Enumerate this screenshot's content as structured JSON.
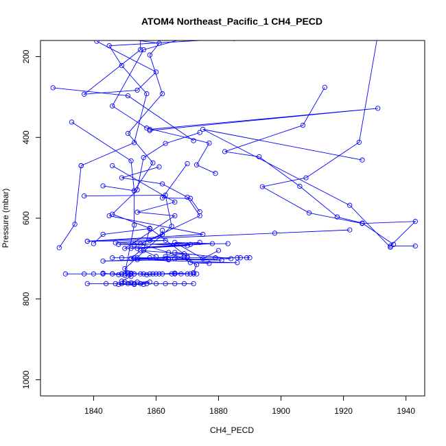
{
  "chart_data": {
    "type": "line",
    "title": "ATOM4 Northeast_Pacific_1 CH4_PECD",
    "xlabel": "CH4_PECD",
    "ylabel": "Pressure (mbar)",
    "xlim": [
      1823,
      1946
    ],
    "ylim": [
      1040,
      160
    ],
    "y_reversed": true,
    "x_ticks": [
      1840,
      1860,
      1880,
      1900,
      1920,
      1940
    ],
    "y_ticks": [
      200,
      400,
      600,
      800,
      1000
    ],
    "grid": false,
    "legend": "none",
    "series_color": "#0000ff",
    "segments": [
      [
        [
          1840,
          145
        ],
        [
          1861,
          167
        ],
        [
          1858,
          196
        ],
        [
          1862,
          292
        ],
        [
          1851,
          390
        ],
        [
          1859,
          463
        ],
        [
          1853,
          532
        ],
        [
          1853,
          617
        ],
        [
          1850,
          738
        ]
      ],
      [
        [
          1869,
          155
        ],
        [
          1856,
          183
        ],
        [
          1846,
          322
        ],
        [
          1857,
          377
        ],
        [
          1877,
          414
        ],
        [
          1873,
          468
        ],
        [
          1879,
          489
        ]
      ],
      [
        [
          1885,
          155
        ],
        [
          1845,
          173
        ],
        [
          1849,
          222
        ],
        [
          1857,
          292
        ],
        [
          1853,
          413
        ],
        [
          1836,
          470
        ]
      ],
      [
        [
          1836,
          470
        ],
        [
          1834,
          615
        ],
        [
          1829,
          673
        ]
      ],
      [
        [
          1855,
          140
        ],
        [
          1855,
          183
        ],
        [
          1837,
          293
        ],
        [
          1854,
          283
        ],
        [
          1860,
          238
        ],
        [
          1841,
          162
        ]
      ],
      [
        [
          1827,
          277
        ],
        [
          1851,
          297
        ],
        [
          1872,
          408
        ]
      ],
      [
        [
          1833,
          362
        ],
        [
          1852,
          458
        ],
        [
          1853,
          532
        ],
        [
          1843,
          520
        ]
      ],
      [
        [
          1874,
          388
        ],
        [
          1863,
          415
        ],
        [
          1856,
          450
        ],
        [
          1854,
          530
        ],
        [
          1846,
          590
        ],
        [
          1858,
          625
        ],
        [
          1870,
          695
        ]
      ],
      [
        [
          1858,
          383
        ],
        [
          1931,
          328
        ],
        [
          1858,
          380
        ]
      ],
      [
        [
          1914,
          276
        ],
        [
          1907,
          370
        ],
        [
          1882,
          435
        ],
        [
          1893,
          448
        ],
        [
          1906,
          521
        ],
        [
          1918,
          597
        ],
        [
          1926,
          612
        ],
        [
          1936,
          665
        ]
      ],
      [
        [
          1888,
          140
        ],
        [
          1932,
          100
        ],
        [
          1925,
          412
        ],
        [
          1908,
          500
        ],
        [
          1894,
          522
        ],
        [
          1909,
          587
        ],
        [
          1926,
          613
        ],
        [
          1943,
          608
        ],
        [
          1935,
          669
        ],
        [
          1943,
          669
        ]
      ],
      [
        [
          1926,
          456
        ],
        [
          1875,
          380
        ],
        [
          1922,
          568
        ],
        [
          1935,
          672
        ]
      ],
      [
        [
          1846,
          470
        ],
        [
          1866,
          560
        ],
        [
          1854,
          585
        ],
        [
          1866,
          594
        ],
        [
          1850,
          675
        ],
        [
          1871,
          665
        ]
      ],
      [
        [
          1861,
          473
        ],
        [
          1849,
          500
        ],
        [
          1862,
          515
        ],
        [
          1870,
          548
        ],
        [
          1874,
          594
        ],
        [
          1855,
          664
        ],
        [
          1864,
          685
        ],
        [
          1873,
          715
        ],
        [
          1872,
          735
        ]
      ],
      [
        [
          1837,
          545
        ],
        [
          1863,
          543
        ],
        [
          1865,
          620
        ],
        [
          1850,
          725
        ],
        [
          1851,
          735
        ]
      ],
      [
        [
          1845,
          594
        ],
        [
          1875,
          640
        ],
        [
          1838,
          657
        ],
        [
          1863,
          655
        ],
        [
          1847,
          661
        ],
        [
          1870,
          668
        ],
        [
          1854,
          675
        ]
      ],
      [
        [
          1840,
          663
        ],
        [
          1843,
          640
        ],
        [
          1858,
          626
        ],
        [
          1856,
          680
        ],
        [
          1860,
          695
        ]
      ],
      [
        [
          1852,
          675
        ],
        [
          1878,
          663
        ],
        [
          1866,
          660
        ],
        [
          1875,
          700
        ],
        [
          1880,
          680
        ]
      ],
      [
        [
          1874,
          660
        ],
        [
          1853,
          666
        ],
        [
          1848,
          665
        ],
        [
          1883,
          663
        ]
      ],
      [
        [
          1869,
          695
        ],
        [
          1852,
          700
        ],
        [
          1864,
          703
        ]
      ],
      [
        [
          1866,
          685
        ],
        [
          1884,
          700
        ],
        [
          1843,
          706
        ],
        [
          1854,
          703
        ],
        [
          1886,
          710
        ],
        [
          1871,
          710
        ],
        [
          1877,
          712
        ]
      ],
      [
        [
          1846,
          698
        ],
        [
          1858,
          698
        ],
        [
          1879,
          698
        ],
        [
          1887,
          698
        ],
        [
          1889,
          698
        ],
        [
          1870,
          698
        ],
        [
          1854,
          698
        ],
        [
          1849,
          698
        ],
        [
          1886,
          698
        ],
        [
          1890,
          698
        ],
        [
          1853,
          698
        ]
      ],
      [
        [
          1863,
          695
        ],
        [
          1869,
          688
        ],
        [
          1855,
          680
        ],
        [
          1852,
          700
        ]
      ],
      [
        [
          1852,
          700
        ],
        [
          1863,
          700
        ],
        [
          1864,
          702
        ],
        [
          1881,
          704
        ],
        [
          1866,
          700
        ]
      ],
      [
        [
          1838,
          657
        ],
        [
          1898,
          637
        ],
        [
          1922,
          629
        ]
      ],
      [
        [
          1831,
          738
        ],
        [
          1837,
          738
        ],
        [
          1840,
          738
        ],
        [
          1843,
          738
        ],
        [
          1846,
          738
        ],
        [
          1849,
          738
        ],
        [
          1851,
          738
        ],
        [
          1852,
          738
        ],
        [
          1853,
          738
        ],
        [
          1855,
          738
        ],
        [
          1858,
          738
        ],
        [
          1859,
          738
        ],
        [
          1861,
          738
        ],
        [
          1865,
          738
        ],
        [
          1868,
          738
        ],
        [
          1871,
          738
        ],
        [
          1873,
          738
        ]
      ],
      [
        [
          1846,
          738
        ],
        [
          1849,
          738
        ],
        [
          1853,
          738
        ],
        [
          1856,
          738
        ],
        [
          1860,
          738
        ],
        [
          1862,
          738
        ],
        [
          1866,
          738
        ],
        [
          1870,
          738
        ]
      ],
      [
        [
          1843,
          736
        ],
        [
          1848,
          740
        ],
        [
          1852,
          736
        ],
        [
          1857,
          740
        ],
        [
          1866,
          736
        ],
        [
          1872,
          738
        ]
      ],
      [
        [
          1850,
          742
        ],
        [
          1852,
          744
        ],
        [
          1849,
          756
        ],
        [
          1852,
          760
        ]
      ],
      [
        [
          1838,
          762
        ],
        [
          1844,
          762
        ],
        [
          1847,
          762
        ],
        [
          1849,
          762
        ],
        [
          1851,
          762
        ],
        [
          1853,
          762
        ],
        [
          1855,
          762
        ],
        [
          1857,
          762
        ],
        [
          1860,
          762
        ],
        [
          1863,
          762
        ],
        [
          1866,
          762
        ],
        [
          1869,
          762
        ],
        [
          1872,
          762
        ]
      ],
      [
        [
          1850,
          758
        ],
        [
          1854,
          758
        ],
        [
          1858,
          758
        ],
        [
          1853,
          764
        ],
        [
          1848,
          764
        ],
        [
          1856,
          764
        ]
      ],
      [
        [
          1870,
          465
        ],
        [
          1862,
          550
        ],
        [
          1871,
          551
        ],
        [
          1874,
          584
        ]
      ],
      [
        [
          1862,
          630
        ],
        [
          1862,
          640
        ],
        [
          1858,
          655
        ]
      ]
    ]
  }
}
